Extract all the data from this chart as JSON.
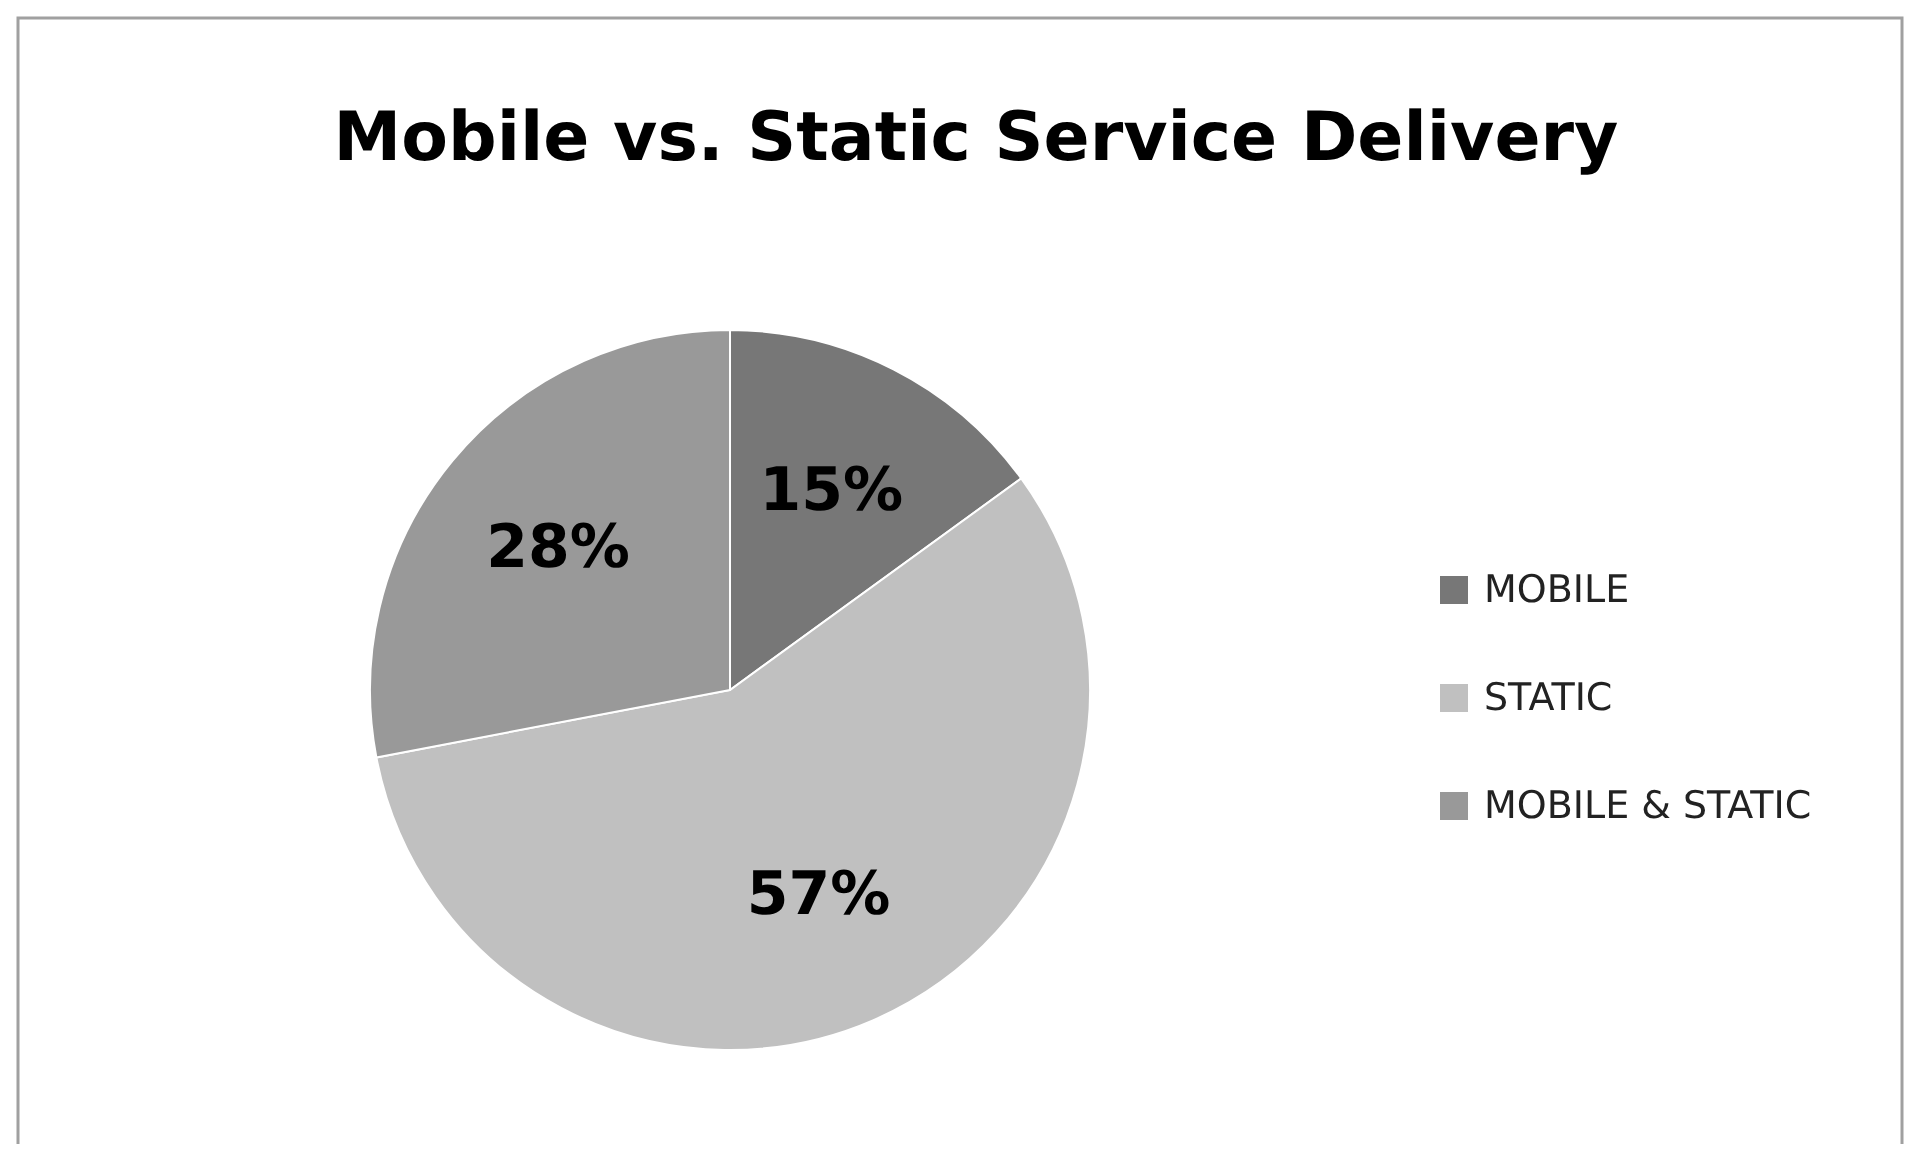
{
  "chart_data": {
    "type": "pie",
    "title": "Mobile vs. Static Service Delivery",
    "categories": [
      "MOBILE",
      "STATIC",
      "MOBILE & STATIC"
    ],
    "values": [
      15,
      57,
      28
    ],
    "colors": [
      "#777777",
      "#c0c0c0",
      "#999999"
    ],
    "value_labels": [
      "15%",
      "57%",
      "28%"
    ],
    "legend": "right"
  }
}
